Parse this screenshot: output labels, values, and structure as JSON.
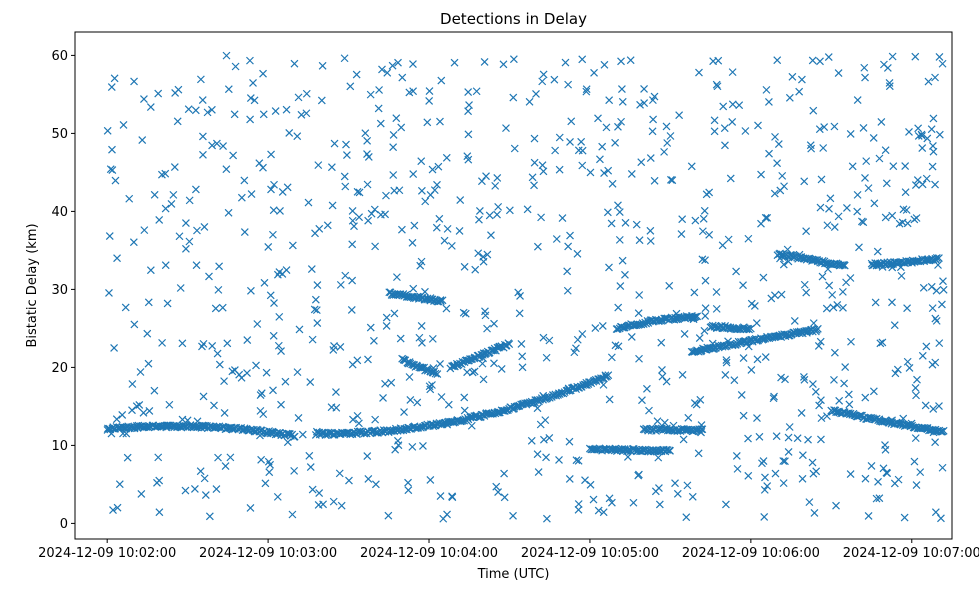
{
  "chart_data": {
    "type": "scatter",
    "title": "Detections in Delay",
    "xlabel": "Time (UTC)",
    "ylabel": "Bistatic Delay (km)",
    "marker": "x",
    "color": "#1f77b4",
    "grid": false,
    "legend": "none",
    "x_unit": "datetime",
    "xlim": [
      "2024-12-09 10:01:48",
      "2024-12-09 10:07:15"
    ],
    "ylim": [
      -2,
      63
    ],
    "x_ticks": [
      "2024-12-09 10:02:00",
      "2024-12-09 10:03:00",
      "2024-12-09 10:04:00",
      "2024-12-09 10:05:00",
      "2024-12-09 10:06:00",
      "2024-12-09 10:07:00"
    ],
    "y_ticks": [
      0,
      10,
      20,
      30,
      40,
      50,
      60
    ],
    "time_range": [
      "2024-12-09 10:02:00",
      "2024-12-09 10:07:12"
    ],
    "tracks": [
      {
        "start": "2024-12-09 10:02:00",
        "end": "2024-12-09 10:03:10",
        "delay_start": 12.1,
        "delay_mid": 12.4,
        "delay_end": 11.2
      },
      {
        "start": "2024-12-09 10:03:18",
        "end": "2024-12-09 10:05:07",
        "delay_start": 11.5,
        "delay_mid": 13.3,
        "delay_end": 19.0
      },
      {
        "start": "2024-12-09 10:05:10",
        "end": "2024-12-09 10:05:40",
        "delay_start": 25.0,
        "delay_mid": 26.0,
        "delay_end": 26.5
      },
      {
        "start": "2024-12-09 10:05:38",
        "end": "2024-12-09 10:06:25",
        "delay_start": 22.0,
        "delay_mid": 23.5,
        "delay_end": 24.8
      },
      {
        "start": "2024-12-09 10:05:45",
        "end": "2024-12-09 10:06:00",
        "delay_start": 25.2,
        "delay_mid": 25.1,
        "delay_end": 24.9
      },
      {
        "start": "2024-12-09 10:06:10",
        "end": "2024-12-09 10:06:35",
        "delay_start": 34.5,
        "delay_mid": 33.8,
        "delay_end": 33.0
      },
      {
        "start": "2024-12-09 10:06:45",
        "end": "2024-12-09 10:07:10",
        "delay_start": 33.2,
        "delay_mid": 33.5,
        "delay_end": 34.0
      },
      {
        "start": "2024-12-09 10:06:30",
        "end": "2024-12-09 10:07:12",
        "delay_start": 14.5,
        "delay_mid": 13.0,
        "delay_end": 11.8
      },
      {
        "start": "2024-12-09 10:03:50",
        "end": "2024-12-09 10:04:03",
        "delay_start": 21.0,
        "delay_mid": 20.0,
        "delay_end": 19.3
      },
      {
        "start": "2024-12-09 10:03:45",
        "end": "2024-12-09 10:04:05",
        "delay_start": 29.5,
        "delay_mid": 29.0,
        "delay_end": 28.5
      },
      {
        "start": "2024-12-09 10:04:08",
        "end": "2024-12-09 10:04:30",
        "delay_start": 20.0,
        "delay_mid": 21.5,
        "delay_end": 23.0
      },
      {
        "start": "2024-12-09 10:05:20",
        "end": "2024-12-09 10:05:42",
        "delay_start": 12.0,
        "delay_mid": 12.0,
        "delay_end": 11.9
      },
      {
        "start": "2024-12-09 10:05:00",
        "end": "2024-12-09 10:05:30",
        "delay_start": 9.5,
        "delay_mid": 9.4,
        "delay_end": 9.3
      }
    ],
    "clutter": {
      "count": 900,
      "delay_range": [
        0.5,
        60
      ]
    }
  }
}
